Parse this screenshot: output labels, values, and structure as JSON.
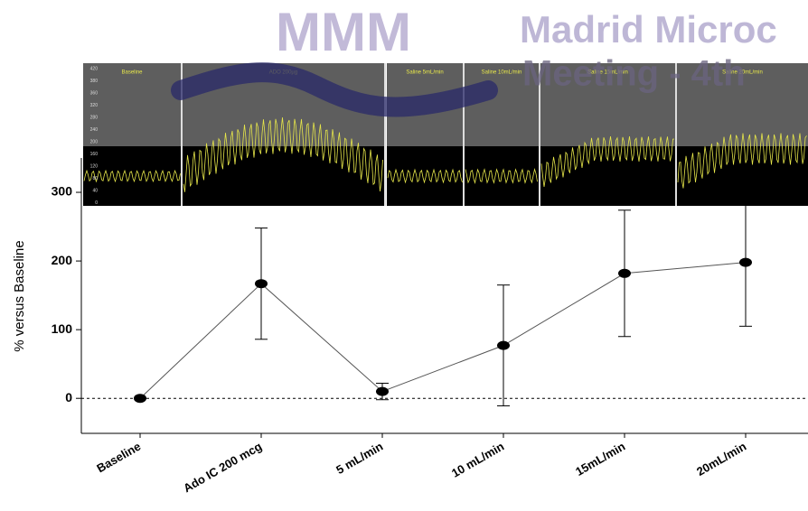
{
  "chart_data": {
    "type": "line",
    "y_label": "% versus Baseline",
    "categories": [
      "Baseline",
      "Ado IC 200 mcg",
      "5 mL/min",
      "10 mL/min",
      "15mL/min",
      "20mL/min"
    ],
    "values": [
      0,
      167,
      10,
      77,
      182,
      198
    ],
    "errors": [
      0,
      81,
      12,
      88,
      92,
      93
    ],
    "color": "#000000",
    "ylim": [
      -51,
      350
    ],
    "yticks": [
      0,
      100,
      200,
      300
    ],
    "reference_line": 0,
    "watermarks": [
      "MMM",
      "Madrid Microc",
      "Meeting - 4th"
    ],
    "inset_labels": [
      "Baseline",
      "ADO 200µg",
      "Saline 5mL/min",
      "Saline 10mL/min",
      "Saline 15mL/min",
      "Saline 20mL/min"
    ],
    "inset_yticks": [
      420,
      380,
      360,
      320,
      280,
      240,
      200,
      160,
      120,
      80,
      40,
      0
    ]
  }
}
